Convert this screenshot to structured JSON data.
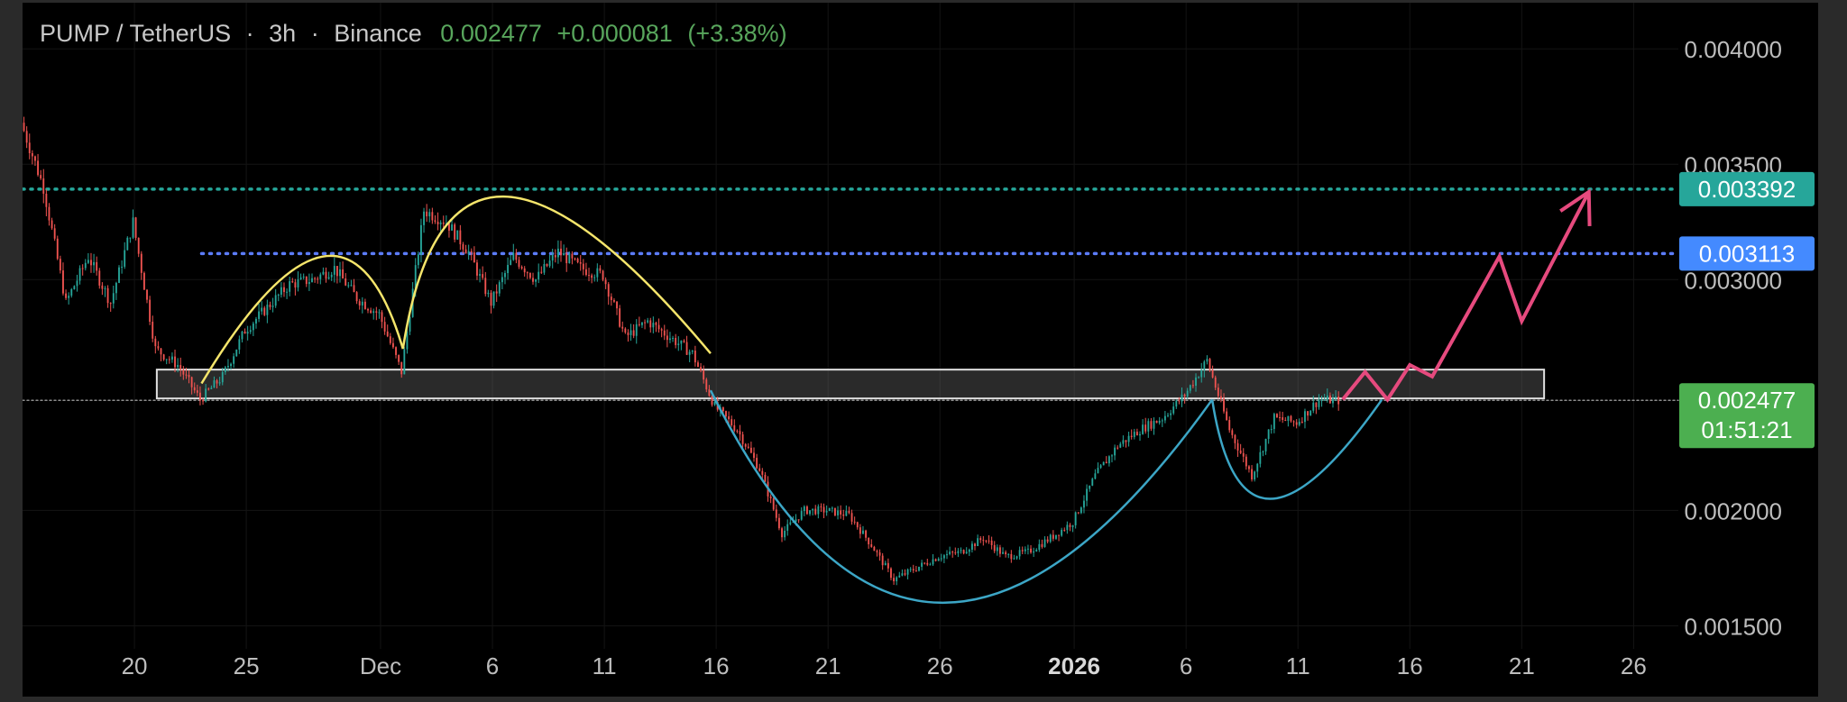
{
  "header": {
    "symbol": "PUMP / TetherUS",
    "timeframe": "3h",
    "exchange": "Binance",
    "separator": "·",
    "last_price": "0.002477",
    "change": "+0.000081",
    "change_pct": "(+3.38%)"
  },
  "price_tags": {
    "resistance_high": {
      "value": "0.003392",
      "color": "#26a69a"
    },
    "resistance_mid": {
      "value": "0.003113",
      "color": "#448aff"
    },
    "current": {
      "value": "0.002477",
      "countdown": "01:51:21",
      "color": "#4caf50"
    }
  },
  "colors": {
    "bull": "#26a69a",
    "bear": "#ef5350",
    "dome": "#f5e56b",
    "cup": "#3ca6c6",
    "projection": "#e64a7e",
    "zone_border": "#e0e0e0"
  },
  "chart_data": {
    "type": "candlestick",
    "title": "PUMP / TetherUS · 3h · Binance",
    "xlabel": "",
    "ylabel": "",
    "ylim": [
      0.0014,
      0.0042
    ],
    "x_range": [
      "2025-11-15",
      "2026-01-28"
    ],
    "y_ticks": [
      "0.004000",
      "0.003500",
      "0.003000",
      "0.002000",
      "0.001500"
    ],
    "x_ticks": [
      {
        "label": "20",
        "date": "2025-11-20"
      },
      {
        "label": "25",
        "date": "2025-11-25"
      },
      {
        "label": "Dec",
        "date": "2025-12-01"
      },
      {
        "label": "6",
        "date": "2025-12-06"
      },
      {
        "label": "11",
        "date": "2025-12-11"
      },
      {
        "label": "16",
        "date": "2025-12-16"
      },
      {
        "label": "21",
        "date": "2025-12-21"
      },
      {
        "label": "26",
        "date": "2025-12-26"
      },
      {
        "label": "2026",
        "date": "2026-01-01",
        "bold": true
      },
      {
        "label": "6",
        "date": "2026-01-06"
      },
      {
        "label": "11",
        "date": "2026-01-11"
      },
      {
        "label": "16",
        "date": "2026-01-16"
      },
      {
        "label": "21",
        "date": "2026-01-21"
      },
      {
        "label": "26",
        "date": "2026-01-26"
      }
    ],
    "price_path": [
      [
        "2025-11-15",
        0.00368
      ],
      [
        "2025-11-16",
        0.0034
      ],
      [
        "2025-11-17",
        0.0029
      ],
      [
        "2025-11-18",
        0.0031
      ],
      [
        "2025-11-19",
        0.0029
      ],
      [
        "2025-11-20",
        0.00325
      ],
      [
        "2025-11-21",
        0.0027
      ],
      [
        "2025-11-22",
        0.00263
      ],
      [
        "2025-11-23",
        0.00248
      ],
      [
        "2025-11-24",
        0.00258
      ],
      [
        "2025-11-25",
        0.00278
      ],
      [
        "2025-11-26",
        0.00288
      ],
      [
        "2025-11-27",
        0.00298
      ],
      [
        "2025-11-28",
        0.003
      ],
      [
        "2025-11-29",
        0.00305
      ],
      [
        "2025-11-30",
        0.00292
      ],
      [
        "2025-12-01",
        0.00285
      ],
      [
        "2025-12-02",
        0.0026
      ],
      [
        "2025-12-03",
        0.0033
      ],
      [
        "2025-12-04",
        0.00325
      ],
      [
        "2025-12-05",
        0.00312
      ],
      [
        "2025-12-06",
        0.0029
      ],
      [
        "2025-12-07",
        0.0031
      ],
      [
        "2025-12-08",
        0.003
      ],
      [
        "2025-12-09",
        0.00312
      ],
      [
        "2025-12-10",
        0.00305
      ],
      [
        "2025-12-11",
        0.00302
      ],
      [
        "2025-12-12",
        0.00275
      ],
      [
        "2025-12-13",
        0.00282
      ],
      [
        "2025-12-14",
        0.00275
      ],
      [
        "2025-12-15",
        0.00268
      ],
      [
        "2025-12-16",
        0.00245
      ],
      [
        "2025-12-17",
        0.00235
      ],
      [
        "2025-12-18",
        0.00218
      ],
      [
        "2025-12-19",
        0.0019
      ],
      [
        "2025-12-20",
        0.002
      ],
      [
        "2025-12-21",
        0.002
      ],
      [
        "2025-12-22",
        0.00198
      ],
      [
        "2025-12-23",
        0.00185
      ],
      [
        "2025-12-24",
        0.0017
      ],
      [
        "2025-12-25",
        0.00175
      ],
      [
        "2025-12-26",
        0.0018
      ],
      [
        "2025-12-27",
        0.00182
      ],
      [
        "2025-12-28",
        0.00188
      ],
      [
        "2025-12-29",
        0.0018
      ],
      [
        "2025-12-30",
        0.00182
      ],
      [
        "2025-12-31",
        0.00188
      ],
      [
        "2026-01-01",
        0.00195
      ],
      [
        "2026-01-02",
        0.00215
      ],
      [
        "2026-01-03",
        0.00228
      ],
      [
        "2026-01-04",
        0.00235
      ],
      [
        "2026-01-05",
        0.0024
      ],
      [
        "2026-01-06",
        0.0025
      ],
      [
        "2026-01-07",
        0.00265
      ],
      [
        "2026-01-08",
        0.00235
      ],
      [
        "2026-01-09",
        0.00215
      ],
      [
        "2026-01-10",
        0.0024
      ],
      [
        "2026-01-11",
        0.00238
      ],
      [
        "2026-01-12",
        0.00248
      ],
      [
        "2026-01-12T18:00",
        0.002477
      ]
    ],
    "horizontal_levels": [
      {
        "value": 0.003392,
        "style": "dotted",
        "color": "#26a69a",
        "from": "2025-11-15"
      },
      {
        "value": 0.003113,
        "style": "dotted",
        "color": "#5c7cfa",
        "from": "2025-11-23"
      },
      {
        "value": 0.002477,
        "style": "dotted",
        "color": "#8c8c8c",
        "from": "2025-11-15"
      }
    ],
    "zone": {
      "from": "2025-11-21",
      "to": "2026-01-22",
      "low": 0.002485,
      "high": 0.00261
    },
    "drawings": {
      "dome_1": [
        [
          "2025-11-23",
          0.00255
        ],
        [
          "2025-11-28T10:00",
          0.0031
        ],
        [
          "2025-12-02",
          0.0027
        ]
      ],
      "dome_2": [
        [
          "2025-12-02",
          0.0027
        ],
        [
          "2025-12-06T12:00",
          0.00336
        ],
        [
          "2025-12-15T18:00",
          0.00268
        ]
      ],
      "cup": [
        [
          "2025-12-15T18:00",
          0.00252
        ],
        [
          "2025-12-26",
          0.0016
        ],
        [
          "2026-01-07T04:00",
          0.00248
        ]
      ],
      "handle": [
        [
          "2026-01-07T04:00",
          0.00248
        ],
        [
          "2026-01-09T18:00",
          0.00205
        ],
        [
          "2026-01-14T18:00",
          0.00248
        ]
      ],
      "projection": [
        [
          "2026-01-13",
          0.00248
        ],
        [
          "2026-01-14",
          0.0026
        ],
        [
          "2026-01-15",
          0.00248
        ],
        [
          "2026-01-16",
          0.00263
        ],
        [
          "2026-01-17",
          0.00258
        ],
        [
          "2026-01-20",
          0.0031
        ],
        [
          "2026-01-21",
          0.00282
        ],
        [
          "2026-01-24",
          0.00338
        ]
      ],
      "arrow_head": [
        "2026-01-24",
        0.00338
      ]
    }
  }
}
